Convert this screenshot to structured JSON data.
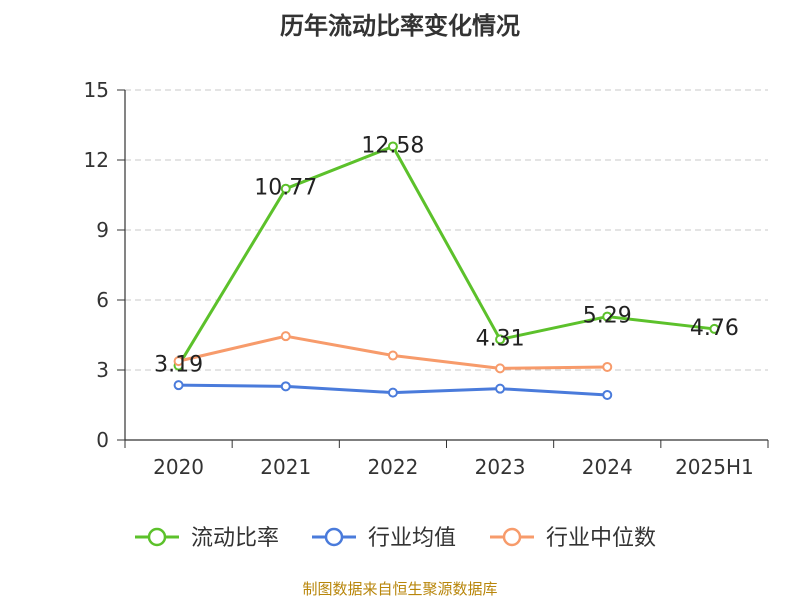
{
  "chart_data": {
    "type": "line",
    "title": "历年流动比率变化情况",
    "categories": [
      "2020",
      "2021",
      "2022",
      "2023",
      "2024",
      "2025H1"
    ],
    "ylim": [
      0,
      15
    ],
    "yticks": [
      "0",
      "3",
      "6",
      "9",
      "12",
      "15"
    ],
    "grid": "horizontal dashed",
    "legend_position": "bottom",
    "series": [
      {
        "name": "流动比率",
        "color": "#5cc12b",
        "values": [
          3.19,
          10.77,
          12.58,
          4.31,
          5.29,
          4.76
        ],
        "labels": [
          "3.19",
          "10.77",
          "12.58",
          "4.31",
          "5.29",
          "4.76"
        ]
      },
      {
        "name": "行业均值",
        "color": "#4a7bdb",
        "values": [
          2.35,
          2.3,
          2.03,
          2.2,
          1.93,
          null
        ],
        "labels": []
      },
      {
        "name": "行业中位数",
        "color": "#f79b6b",
        "values": [
          3.38,
          4.45,
          3.62,
          3.07,
          3.13,
          null
        ],
        "labels": []
      }
    ]
  },
  "source": "制图数据来自恒生聚源数据库"
}
